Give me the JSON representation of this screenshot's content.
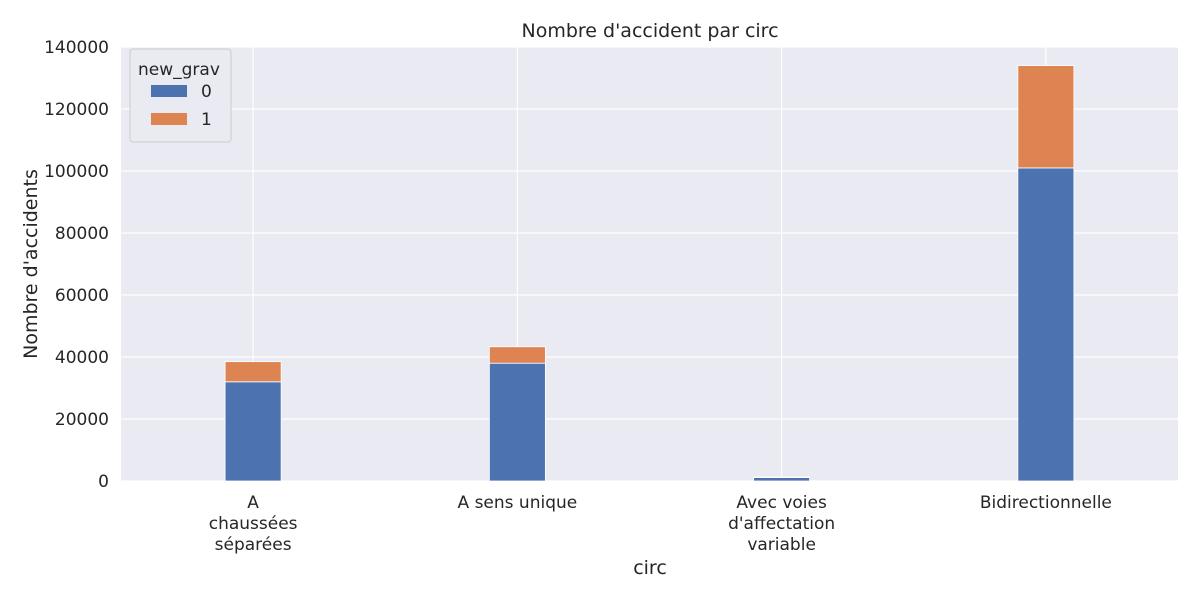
{
  "chart_data": {
    "type": "bar",
    "stacked": true,
    "title": "Nombre d'accident par circ",
    "xlabel": "circ",
    "ylabel": "Nombre d'accidents",
    "categories": [
      [
        "A",
        "chaussées",
        "séparées"
      ],
      [
        "A sens unique"
      ],
      [
        "Avec voies",
        "d'affectation",
        "variable"
      ],
      [
        "Bidirectionnelle"
      ]
    ],
    "series": [
      {
        "name": "0",
        "color": "#4c72b0",
        "values": [
          32000,
          38000,
          1100,
          101000
        ]
      },
      {
        "name": "1",
        "color": "#dd8452",
        "values": [
          6500,
          5300,
          200,
          33000
        ]
      }
    ],
    "legend": {
      "title": "new_grav",
      "position": "top-left"
    },
    "ylim": [
      0,
      140000
    ],
    "yticks": [
      "0",
      "20000",
      "40000",
      "60000",
      "80000",
      "100000",
      "120000",
      "140000"
    ],
    "grid": true,
    "background": "#eaeaf2"
  }
}
